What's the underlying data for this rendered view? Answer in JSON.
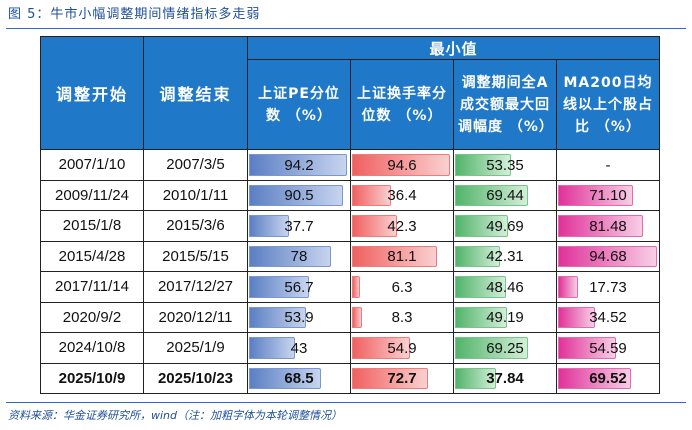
{
  "figure": {
    "title": "图 5：牛市小幅调整期间情绪指标多走弱",
    "source": "资料来源：华金证券研究所，wind（注：加粗字体为本轮调整情况）"
  },
  "table": {
    "col_start": "调整开始",
    "col_end": "调整结束",
    "group_header": "最小值",
    "metric_headers": [
      "上证PE分位数 （%）",
      "上证换手率分位数 （%）",
      "调整期间全A成交额最大回调幅度 （%）",
      "MA200日均线以上个股占比 （%）"
    ],
    "rows": [
      {
        "start": "2007/1/10",
        "end": "2007/3/5",
        "pe": "94.2",
        "turnover": "94.6",
        "drawdown": "53.35",
        "ma200": "-",
        "bold": false
      },
      {
        "start": "2009/11/24",
        "end": "2010/1/11",
        "pe": "90.5",
        "turnover": "36.4",
        "drawdown": "69.44",
        "ma200": "71.10",
        "bold": false
      },
      {
        "start": "2015/1/8",
        "end": "2015/3/6",
        "pe": "37.7",
        "turnover": "42.3",
        "drawdown": "49.69",
        "ma200": "81.48",
        "bold": false
      },
      {
        "start": "2015/4/28",
        "end": "2015/5/15",
        "pe": "78",
        "turnover": "81.1",
        "drawdown": "42.31",
        "ma200": "94.68",
        "bold": false
      },
      {
        "start": "2017/11/14",
        "end": "2017/12/27",
        "pe": "56.7",
        "turnover": "6.3",
        "drawdown": "48.46",
        "ma200": "17.73",
        "bold": false
      },
      {
        "start": "2020/9/2",
        "end": "2020/12/11",
        "pe": "53.9",
        "turnover": "8.3",
        "drawdown": "49.19",
        "ma200": "34.52",
        "bold": false
      },
      {
        "start": "2024/10/8",
        "end": "2025/1/9",
        "pe": "43",
        "turnover": "54.9",
        "drawdown": "69.25",
        "ma200": "54.59",
        "bold": false
      },
      {
        "start": "2025/10/9",
        "end": "2025/10/23",
        "pe": "68.5",
        "turnover": "72.7",
        "drawdown": "37.84",
        "ma200": "69.52",
        "bold": true
      }
    ]
  },
  "colors": {
    "header_bg": "#1f78c8",
    "pe_bar": "#5b7fc4",
    "turnover_bar": "#f06060",
    "drawdown_bar": "#52b46a",
    "ma200_bar": "#e0329a"
  }
}
